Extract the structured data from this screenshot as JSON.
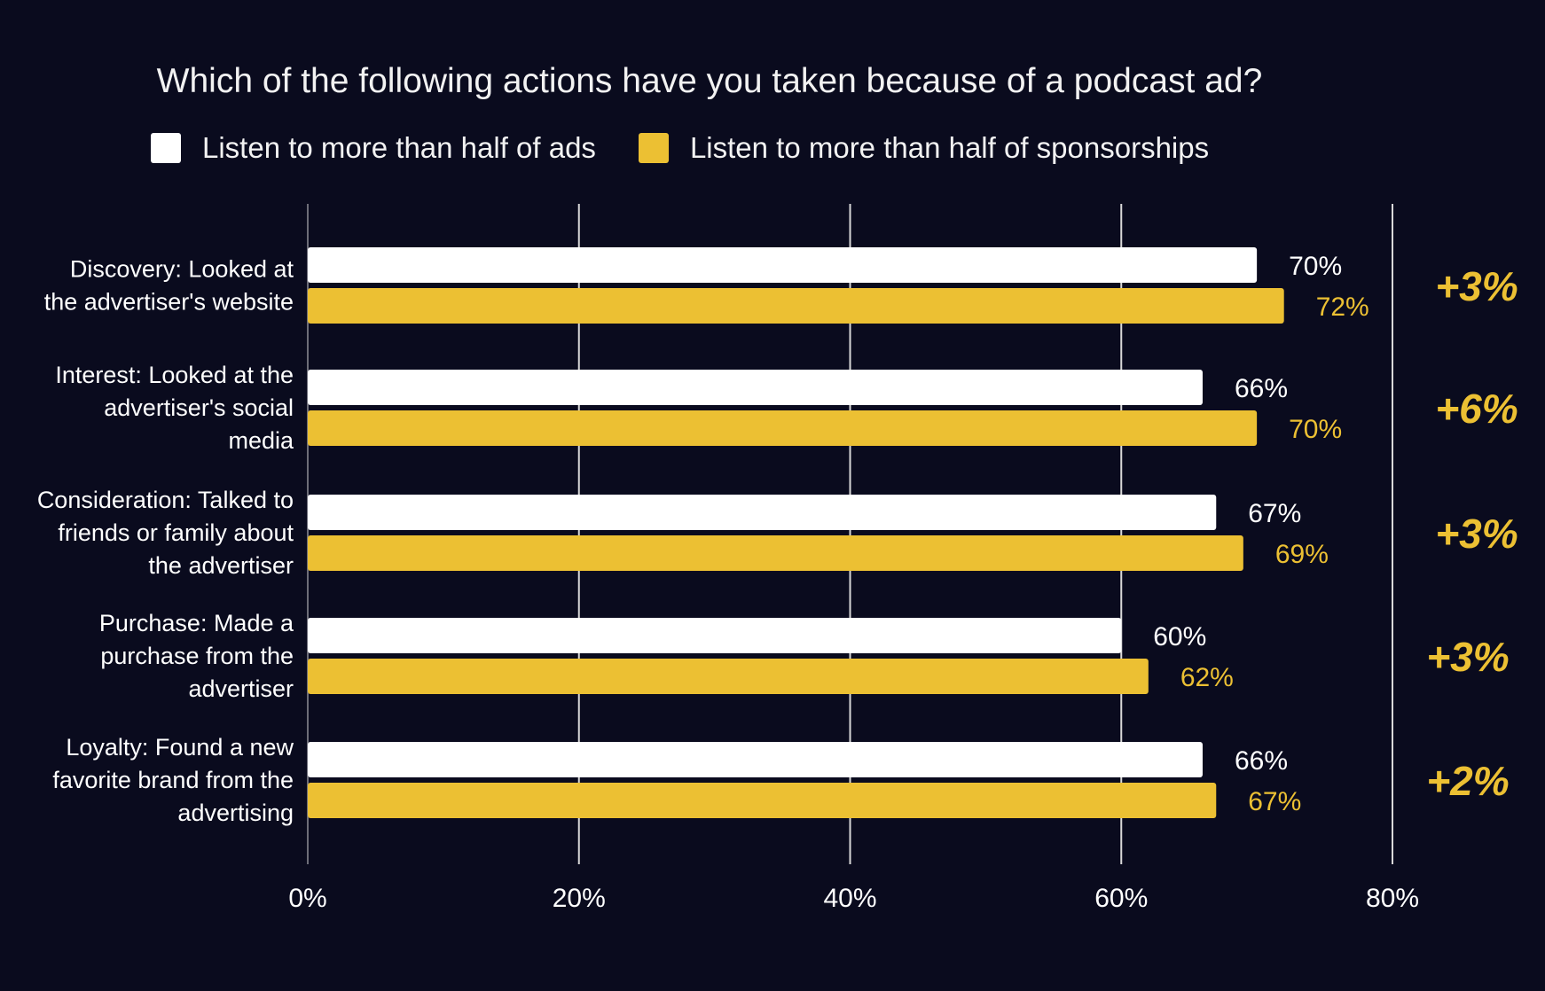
{
  "colors": {
    "background": "#0a0b1e",
    "series_ads": "#ffffff",
    "series_sponsorships": "#ecc033",
    "grid": "#d9d9d9"
  },
  "chart_data": {
    "type": "bar",
    "orientation": "horizontal",
    "title": "Which of the following actions have you taken because of a podcast ad?",
    "xlabel": "",
    "ylabel": "",
    "xlim": [
      0,
      80
    ],
    "x_ticks": [
      "0%",
      "20%",
      "40%",
      "60%",
      "80%"
    ],
    "grid": true,
    "legend_position": "top",
    "categories": [
      [
        "Discovery: Looked at",
        "the advertiser's website"
      ],
      [
        "Interest: Looked at the",
        "advertiser's social",
        "media"
      ],
      [
        "Consideration: Talked to",
        "friends or family about",
        "the advertiser"
      ],
      [
        "Purchase: Made a",
        "purchase from the",
        "advertiser"
      ],
      [
        "Loyalty: Found a new",
        "favorite brand from the",
        "advertising"
      ]
    ],
    "series": [
      {
        "name": "Listen to more than half of ads",
        "values": [
          70,
          66,
          67,
          60,
          66
        ],
        "labels": [
          "70%",
          "66%",
          "67%",
          "60%",
          "66%"
        ],
        "color": "#ffffff"
      },
      {
        "name": "Listen to more than half of sponsorships",
        "values": [
          72,
          70,
          69,
          62,
          67
        ],
        "labels": [
          "72%",
          "70%",
          "69%",
          "62%",
          "67%"
        ],
        "color": "#ecc033"
      }
    ],
    "differences": [
      "+3%",
      "+6%",
      "+3%",
      "+3%",
      "+2%"
    ]
  }
}
